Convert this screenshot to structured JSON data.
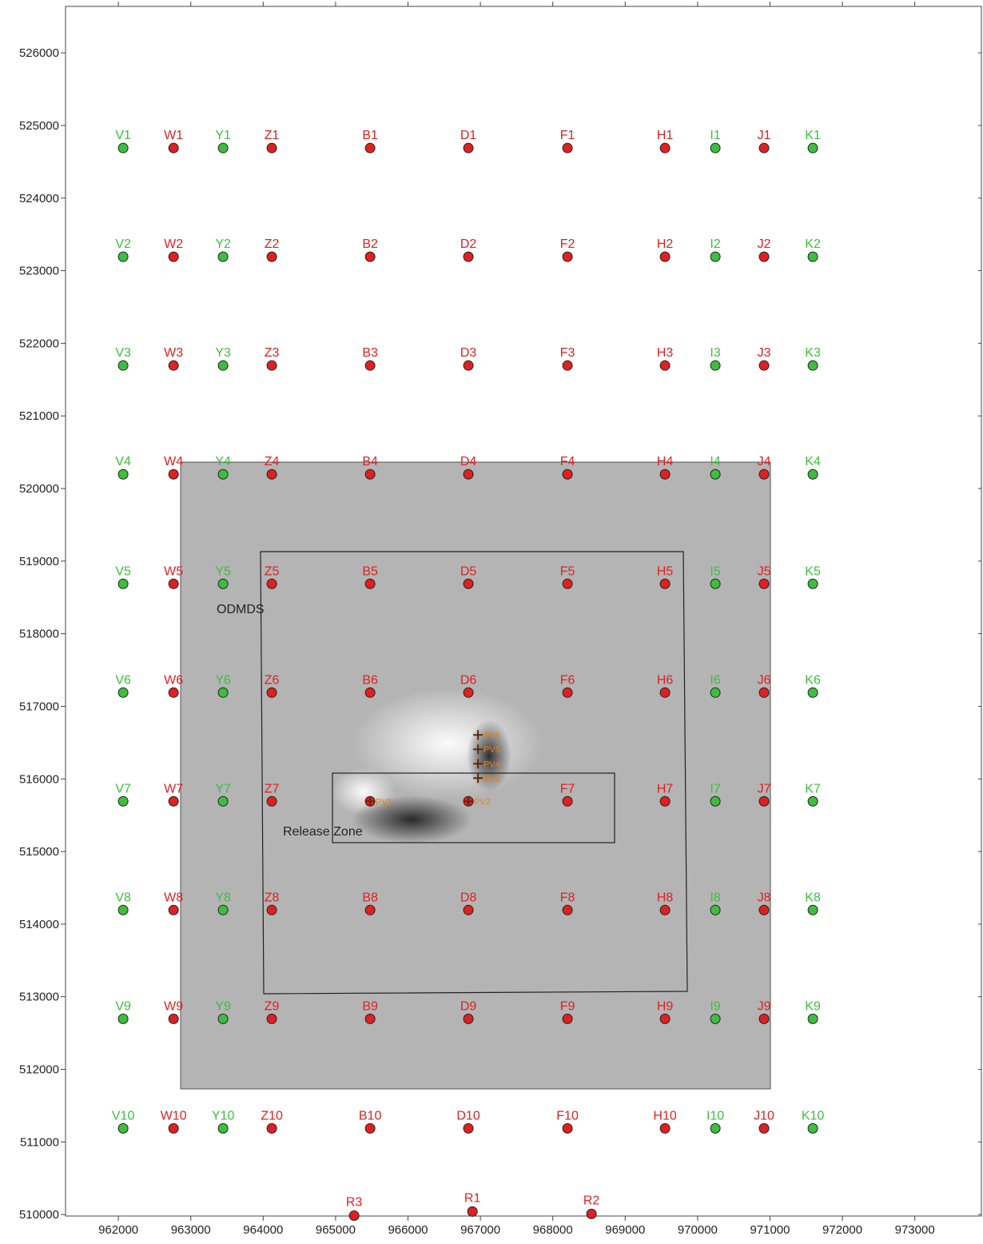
{
  "chart_data": {
    "type": "scatter",
    "xlim": [
      961270,
      973920
    ],
    "ylim": [
      509980,
      526640
    ],
    "xticks": [
      962000,
      963000,
      964000,
      965000,
      966000,
      967000,
      968000,
      969000,
      970000,
      971000,
      972000,
      973000
    ],
    "yticks": [
      510000,
      511000,
      512000,
      513000,
      514000,
      515000,
      516000,
      517000,
      518000,
      519000,
      520000,
      521000,
      522000,
      523000,
      524000,
      525000,
      526000
    ],
    "row_y": [
      524689,
      523192,
      521694,
      520196,
      518687,
      517189,
      515692,
      514194,
      512696,
      511187
    ],
    "columns": [
      {
        "x": 962066,
        "color": "#3cbf3c",
        "labels": [
          "V1",
          "V2",
          "V3",
          "V4",
          "V5",
          "V6",
          "V7",
          "V8",
          "V9",
          "V10"
        ]
      },
      {
        "x": 962762,
        "color": "#e02020",
        "labels": [
          "W1",
          "W2",
          "W3",
          "W4",
          "W5",
          "W6",
          "W7",
          "W8",
          "W9",
          "W10"
        ]
      },
      {
        "x": 963446,
        "color": "#3cbf3c",
        "labels": [
          "Y1",
          "Y2",
          "Y3",
          "Y4",
          "Y5",
          "Y6",
          "Y7",
          "Y8",
          "Y9",
          "Y10"
        ]
      },
      {
        "x": 964119,
        "color": "#e02020",
        "labels": [
          "Z1",
          "Z2",
          "Z3",
          "Z4",
          "Z5",
          "Z6",
          "Z7",
          "Z8",
          "Z9",
          "Z10"
        ]
      },
      {
        "x": 965477,
        "color": "#e02020",
        "labels": [
          "B1",
          "B2",
          "B3",
          "B4",
          "B5",
          "B6",
          null,
          "B8",
          "B9",
          "B10"
        ]
      },
      {
        "x": 966834,
        "color": "#e02020",
        "labels": [
          "D1",
          "D2",
          "D3",
          "D4",
          "D5",
          "D6",
          null,
          "D8",
          "D9",
          "D10"
        ]
      },
      {
        "x": 968203,
        "color": "#e02020",
        "labels": [
          "F1",
          "F2",
          "F3",
          "F4",
          "F5",
          "F6",
          "F7",
          "F8",
          "F9",
          "F10"
        ]
      },
      {
        "x": 969550,
        "color": "#e02020",
        "labels": [
          "H1",
          "H2",
          "H3",
          "H4",
          "H5",
          "H6",
          "H7",
          "H8",
          "H9",
          "H10"
        ]
      },
      {
        "x": 970245,
        "color": "#3cbf3c",
        "labels": [
          "I1",
          "I2",
          "I3",
          "I4",
          "I5",
          "I6",
          "I7",
          "I8",
          "I9",
          "I10"
        ]
      },
      {
        "x": 970918,
        "color": "#e02020",
        "labels": [
          "J1",
          "J2",
          "J3",
          "J4",
          "J5",
          "J6",
          "J7",
          "J8",
          "J9",
          "J10"
        ]
      },
      {
        "x": 971592,
        "color": "#3cbf3c",
        "labels": [
          "K1",
          "K2",
          "K3",
          "K4",
          "K5",
          "K6",
          "K7",
          "K8",
          "K9",
          "K10"
        ]
      }
    ],
    "other_points": [
      {
        "label": "R1",
        "x": 966890,
        "y": 510042,
        "color": "#e02020"
      },
      {
        "label": "R2",
        "x": 968534,
        "y": 510009,
        "color": "#e02020"
      },
      {
        "label": "R3",
        "x": 965256,
        "y": 509985,
        "color": "#e02020"
      }
    ],
    "pv_points": [
      {
        "label": "PV1",
        "x": 965477,
        "y": 515692
      },
      {
        "label": "PV2",
        "x": 966834,
        "y": 515692
      },
      {
        "label": "PV3",
        "x": 966967,
        "y": 516011
      },
      {
        "label": "PV4",
        "x": 966967,
        "y": 516209
      },
      {
        "label": "PV5",
        "x": 966967,
        "y": 516408
      },
      {
        "label": "PV6",
        "x": 966967,
        "y": 516606
      }
    ],
    "annotations": [
      "ODMDS",
      "Release Zone"
    ]
  }
}
